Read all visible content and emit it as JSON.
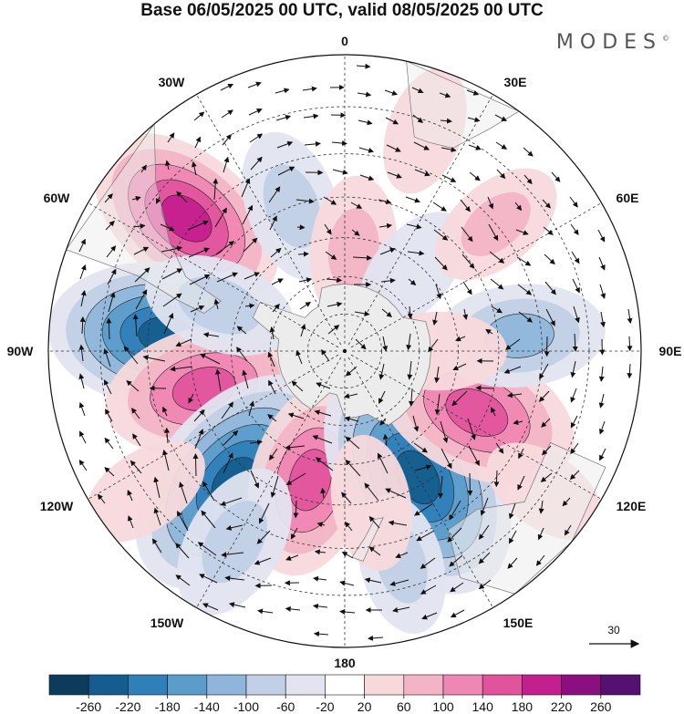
{
  "title": "Base 06/05/2025 00 UTC, valid 08/05/2025 00 UTC",
  "logo": "MODES",
  "longitude_labels": {
    "top": "0",
    "top_right": "30E",
    "right_upper": "60E",
    "right": "90E",
    "right_lower": "120E",
    "bottom_right": "150E",
    "bottom": "180",
    "bottom_left": "150W",
    "left_lower": "120W",
    "left": "90W",
    "left_upper": "60W",
    "top_left": "30W"
  },
  "reference_vector": {
    "value": "30"
  },
  "colorbar": {
    "ticks": [
      "-260",
      "-220",
      "-180",
      "-140",
      "-100",
      "-60",
      "-20",
      "20",
      "60",
      "100",
      "140",
      "180",
      "220",
      "260"
    ],
    "colors": [
      "#0d3b5c",
      "#155d8e",
      "#2f7fb8",
      "#5c9ccb",
      "#8fb6da",
      "#c1d0e6",
      "#e2e4f0",
      "#ffffff",
      "#f7d9dc",
      "#f3b5c6",
      "#ef87b4",
      "#e0549d",
      "#c41f8e",
      "#8c0f80",
      "#55116f"
    ]
  },
  "anomaly_centers": [
    {
      "lon": -50,
      "lat": -38,
      "value": 190
    },
    {
      "lon": -85,
      "lat": -44,
      "value": -230
    },
    {
      "lon": -105,
      "lat": -52,
      "value": 170
    },
    {
      "lon": -140,
      "lat": -46,
      "value": -250
    },
    {
      "lon": -165,
      "lat": -55,
      "value": 160
    },
    {
      "lon": 150,
      "lat": -52,
      "value": -260
    },
    {
      "lon": 115,
      "lat": -52,
      "value": 180
    },
    {
      "lon": -20,
      "lat": -50,
      "value": -90
    },
    {
      "lon": 5,
      "lat": -63,
      "value": 80
    },
    {
      "lon": 40,
      "lat": -62,
      "value": -60
    },
    {
      "lon": 85,
      "lat": -45,
      "value": -120
    },
    {
      "lon": 50,
      "lat": -40,
      "value": 70
    },
    {
      "lon": 90,
      "lat": -65,
      "value": 60
    },
    {
      "lon": 125,
      "lat": -30,
      "value": 50
    },
    {
      "lon": -70,
      "lat": -55,
      "value": -90
    },
    {
      "lon": 165,
      "lat": -35,
      "value": -70
    },
    {
      "lon": 170,
      "lat": -50,
      "value": 60
    },
    {
      "lon": -125,
      "lat": -30,
      "value": 60
    },
    {
      "lon": -150,
      "lat": -35,
      "value": -100
    },
    {
      "lon": 20,
      "lat": -32,
      "value": 50
    }
  ]
}
